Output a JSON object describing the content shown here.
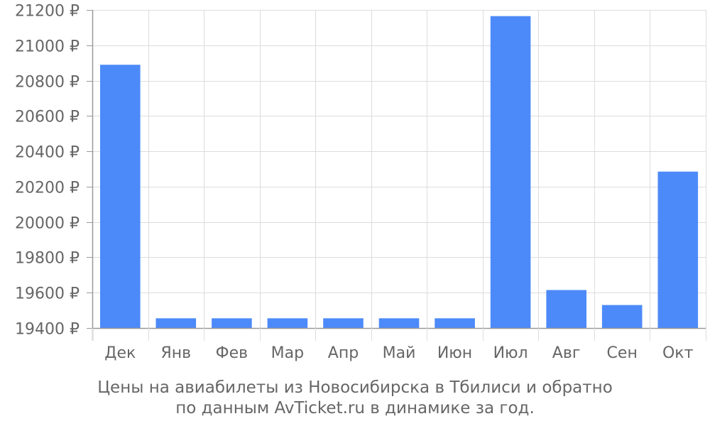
{
  "chart_data": {
    "type": "bar",
    "categories": [
      "Дек",
      "Янв",
      "Фев",
      "Мар",
      "Апр",
      "Май",
      "Июн",
      "Июл",
      "Авг",
      "Сен",
      "Окт"
    ],
    "values": [
      20890,
      19455,
      19455,
      19455,
      19455,
      19455,
      19455,
      21165,
      19615,
      19530,
      20285
    ],
    "ylim": [
      19400,
      21200
    ],
    "yticks": [
      19400,
      19600,
      19800,
      20000,
      20200,
      20400,
      20600,
      20800,
      21000,
      21200
    ],
    "ytick_suffix": " ₽",
    "grid": true,
    "bar_color": "#4d8af9",
    "grid_color": "#dddddd",
    "axis_color": "#999999",
    "text_color": "#666666"
  },
  "caption": {
    "line1": "Цены на авиабилеты из Новосибирска в Тбилиси и обратно",
    "line2": "по данным AvTicket.ru в динамике за год."
  }
}
